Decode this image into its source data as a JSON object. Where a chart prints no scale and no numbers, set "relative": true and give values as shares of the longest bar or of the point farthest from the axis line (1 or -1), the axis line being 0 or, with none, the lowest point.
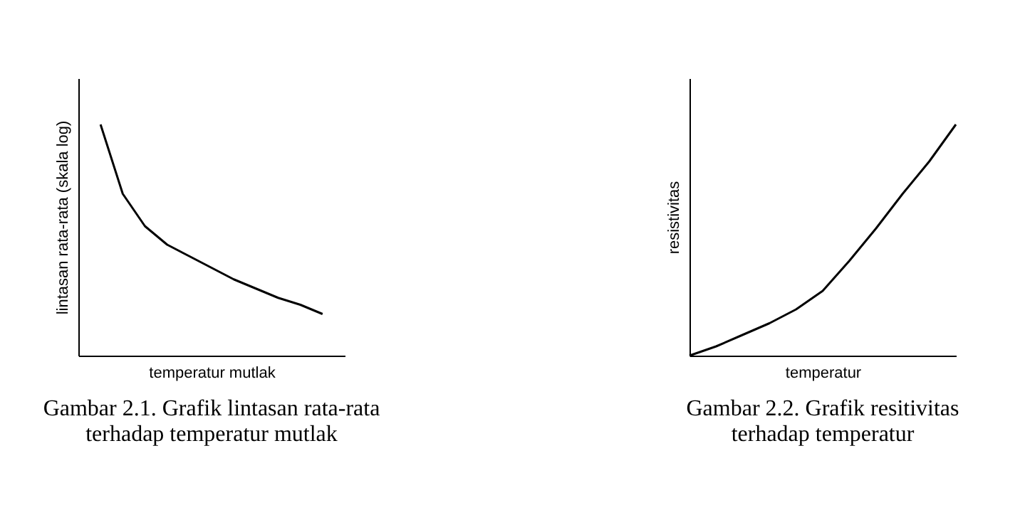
{
  "chart_data": [
    {
      "type": "line",
      "relative": true,
      "xlabel": "temperatur mutlak",
      "ylabel": "lintasan rata-rata (skala log)",
      "annotations": [
        "Gambar 2.1. Grafik lintasan rata-rata terhadap temperatur mutlak"
      ],
      "categories": [
        null,
        null,
        null,
        null,
        null,
        null,
        null,
        null,
        null,
        null,
        null
      ],
      "series": [
        {
          "color": "#000000",
          "values": [
            1,
            0.7,
            0.56,
            0.48,
            0.43,
            0.38,
            0.33,
            0.29,
            0.25,
            0.22,
            0.18
          ]
        }
      ]
    },
    {
      "type": "line",
      "relative": true,
      "xlabel": "temperatur",
      "ylabel": "resistivitas",
      "annotations": [
        "Gambar 2.2. Grafik resitivitas terhadap temperatur"
      ],
      "categories": [
        null,
        null,
        null,
        null,
        null,
        null,
        null,
        null,
        null,
        null,
        null
      ],
      "series": [
        {
          "color": "#000000",
          "values": [
            0,
            0.04,
            0.09,
            0.14,
            0.2,
            0.28,
            0.41,
            0.55,
            0.7,
            0.84,
            1
          ]
        }
      ]
    }
  ]
}
